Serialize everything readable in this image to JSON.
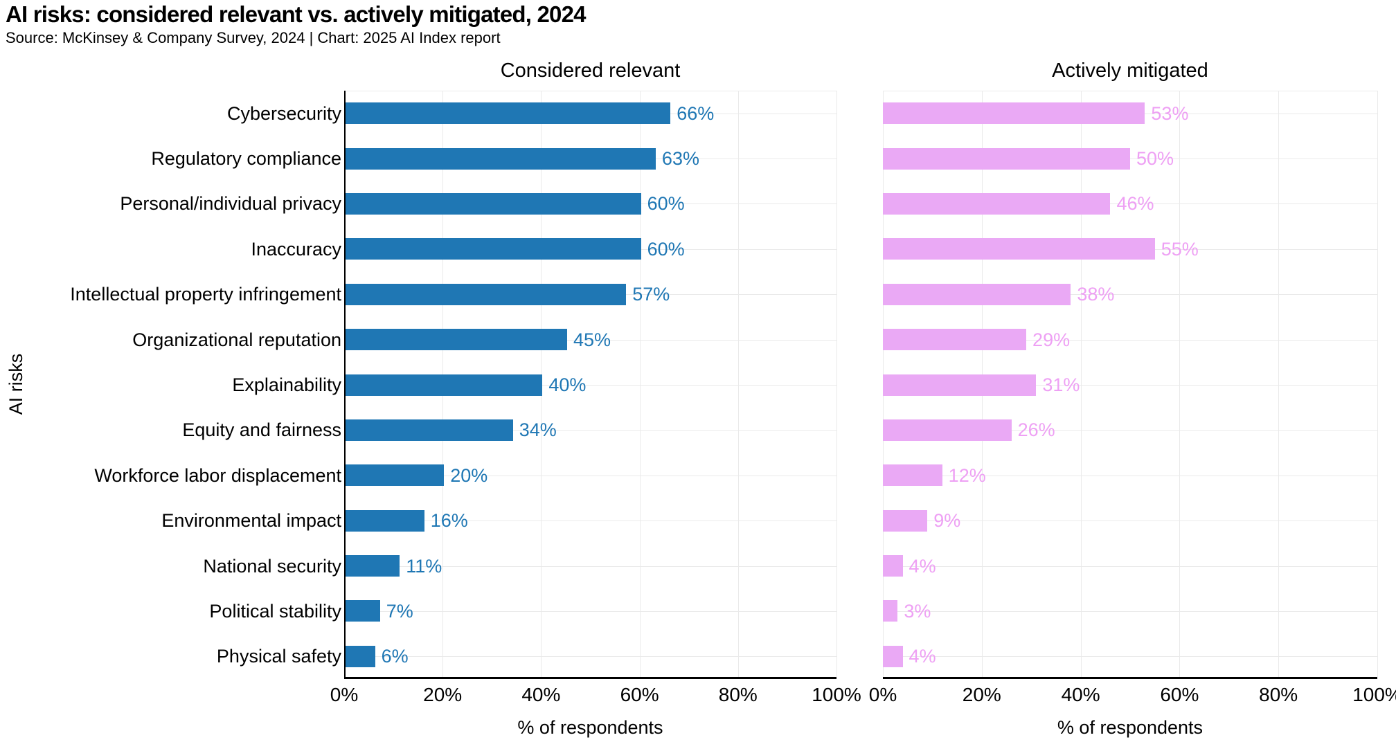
{
  "header": {
    "title": "AI risks: considered relevant vs. actively mitigated, 2024",
    "subtitle": "Source: McKinsey & Company Survey, 2024 | Chart: 2025 AI Index report"
  },
  "chart_data": {
    "type": "bar",
    "orientation": "horizontal",
    "title": "AI risks: considered relevant vs. actively mitigated, 2024",
    "categories": [
      "Cybersecurity",
      "Regulatory compliance",
      "Personal/individual privacy",
      "Inaccuracy",
      "Intellectual property infringement",
      "Organizational reputation",
      "Explainability",
      "Equity and fairness",
      "Workforce labor displacement",
      "Environmental impact",
      "National security",
      "Political stability",
      "Physical safety"
    ],
    "series": [
      {
        "name": "Considered relevant",
        "values": [
          66,
          63,
          60,
          60,
          57,
          45,
          40,
          34,
          20,
          16,
          11,
          7,
          6
        ],
        "color": "#1f77b4",
        "label_color": "#1f77b4"
      },
      {
        "name": "Actively mitigated",
        "values": [
          53,
          50,
          46,
          55,
          38,
          29,
          31,
          26,
          12,
          9,
          4,
          3,
          4
        ],
        "color": "#eaa9f5",
        "label_color": "#eea0f4"
      }
    ],
    "value_suffix": "%",
    "xlabel": "% of respondents",
    "ylabel": "AI risks",
    "xlim": [
      0,
      100
    ],
    "xticks": [
      {
        "value": 0,
        "label": "0%"
      },
      {
        "value": 20,
        "label": "20%"
      },
      {
        "value": 40,
        "label": "40%"
      },
      {
        "value": 60,
        "label": "60%"
      },
      {
        "value": 80,
        "label": "80%"
      },
      {
        "value": 100,
        "label": "100%"
      }
    ],
    "grid": true,
    "legend_position": "panel-titles"
  }
}
